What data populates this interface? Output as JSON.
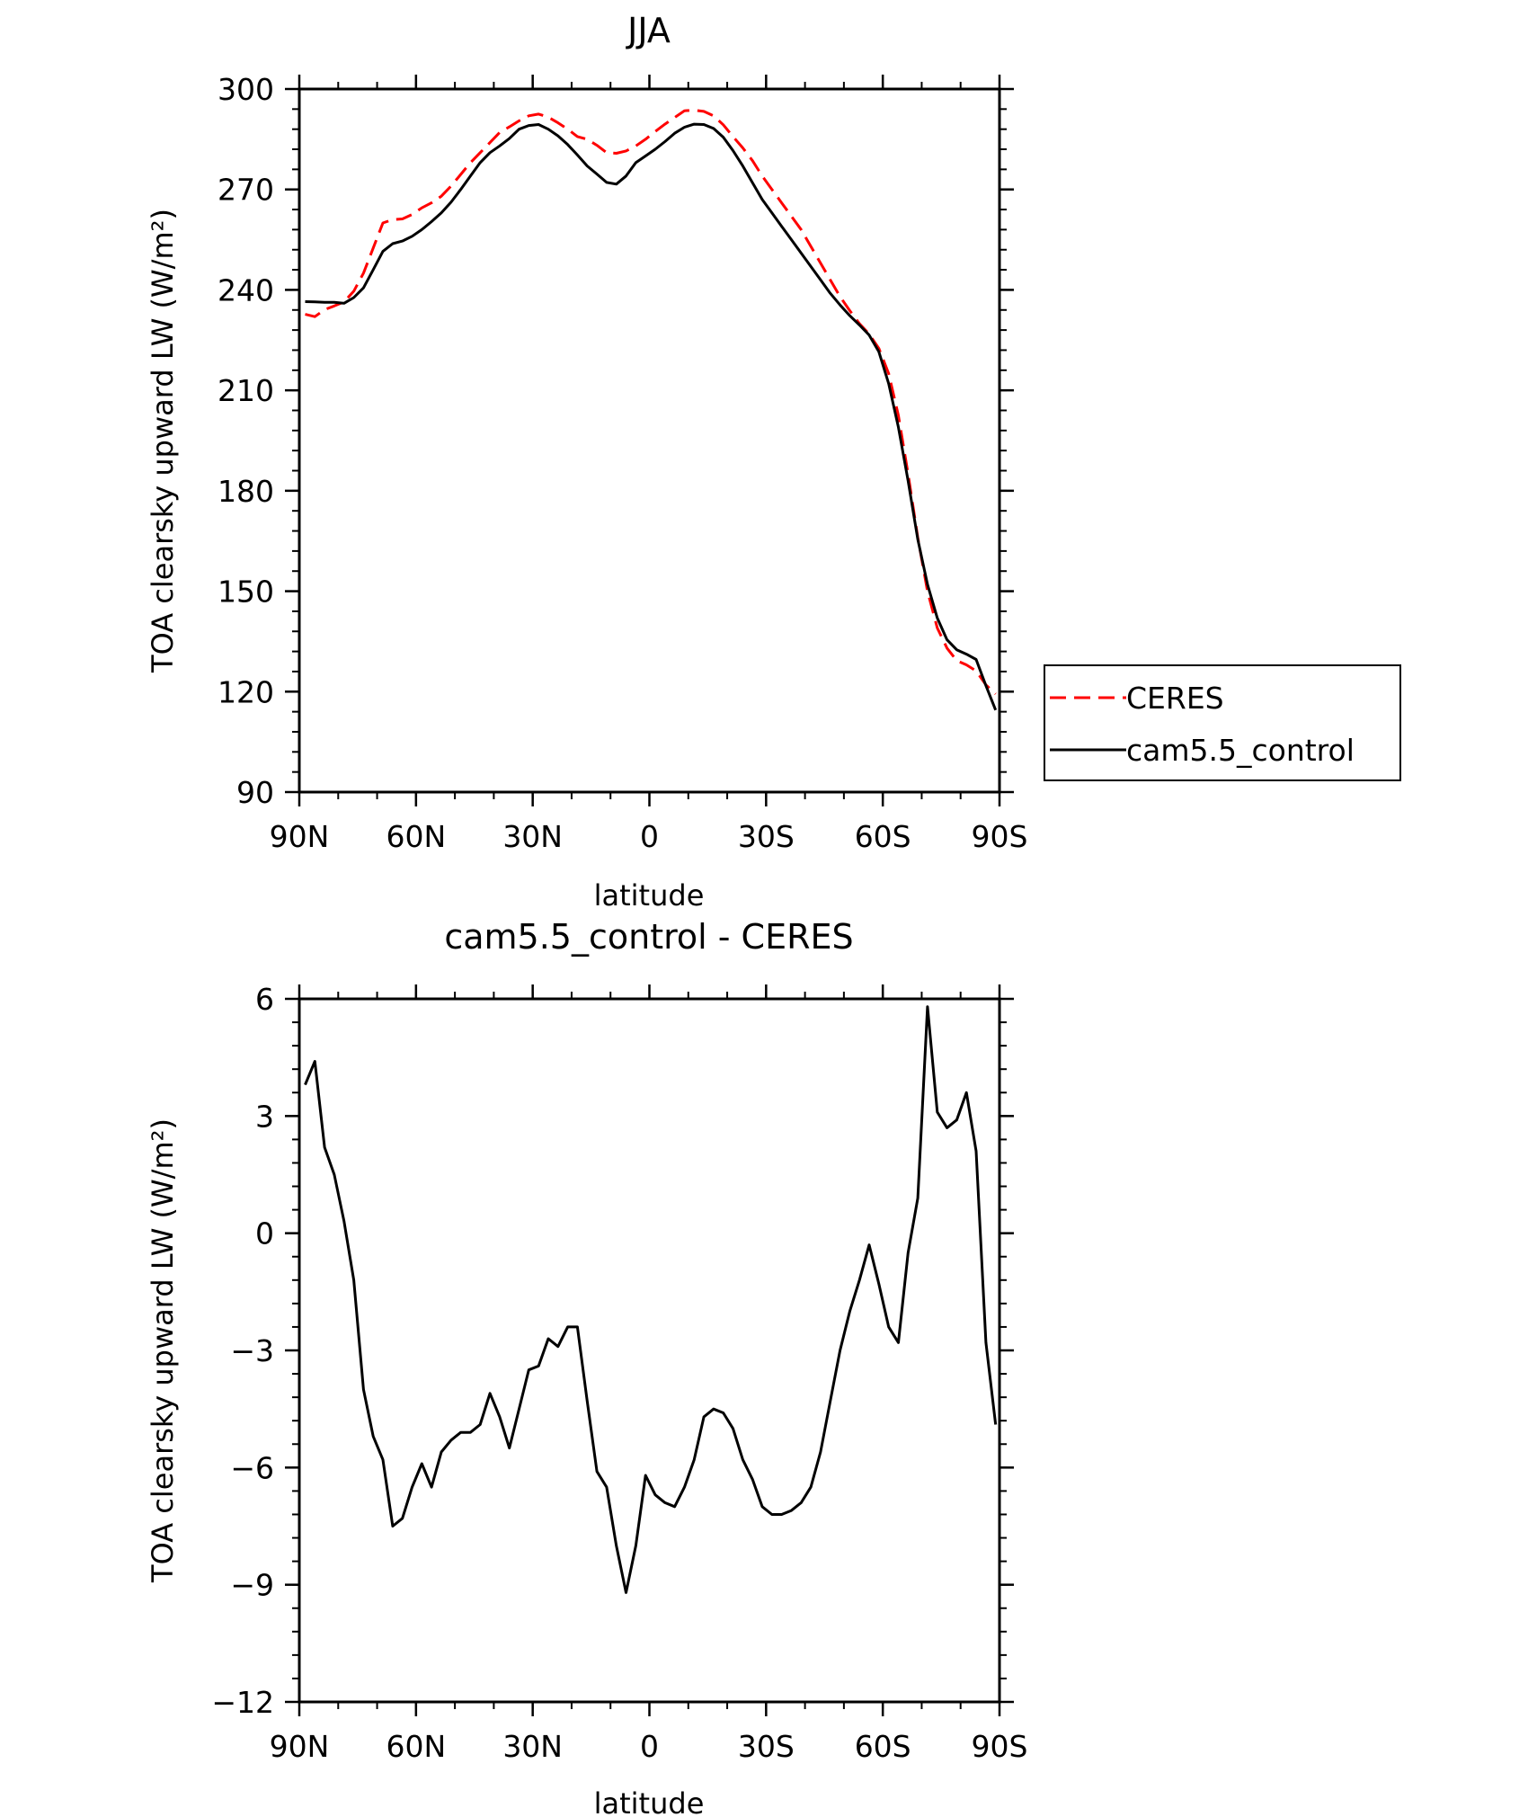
{
  "chart_data": [
    {
      "type": "line",
      "title": "JJA",
      "xlabel": "latitude",
      "ylabel": "TOA clearsky upward LW (W/m²)",
      "xlim": [
        90,
        -90
      ],
      "ylim": [
        90,
        300
      ],
      "xticks": [
        90,
        60,
        30,
        0,
        -30,
        -60,
        -90
      ],
      "xticklabels": [
        "90N",
        "60N",
        "30N",
        "0",
        "30S",
        "60S",
        "90S"
      ],
      "yticks": [
        90,
        120,
        150,
        180,
        210,
        240,
        270,
        300
      ],
      "yticklabels": [
        "90",
        "120",
        "150",
        "180",
        "210",
        "240",
        "270",
        "300"
      ],
      "legend_position": "right",
      "series": [
        {
          "name": "CERES",
          "color": "#ff0000",
          "style": "dashed",
          "x": [
            88.5,
            86,
            83.5,
            81,
            78.5,
            76,
            73.5,
            71,
            68.5,
            66,
            63.5,
            61,
            58.5,
            56,
            53.5,
            51,
            48.5,
            46,
            43.5,
            41,
            38.5,
            36,
            33.5,
            31,
            28.5,
            26,
            23.5,
            21,
            18.5,
            16,
            13.5,
            11,
            8.5,
            6,
            3.5,
            1,
            -1.5,
            -4,
            -6.5,
            -9,
            -11.5,
            -14,
            -16.5,
            -19,
            -21.5,
            -24,
            -26.5,
            -29,
            -31.5,
            -34,
            -36.5,
            -39,
            -41.5,
            -44,
            -46.5,
            -49,
            -51.5,
            -54,
            -56.5,
            -59,
            -61.5,
            -64,
            -66.5,
            -69,
            -71.5,
            -74,
            -76.5,
            -79,
            -81.5,
            -84,
            -86.5,
            -89
          ],
          "y": [
            232.7,
            232.0,
            234.1,
            235.2,
            236.4,
            239.6,
            245.0,
            252.5,
            260.0,
            261.0,
            261.2,
            262.5,
            264.5,
            266.0,
            268.0,
            271.0,
            274.5,
            278.0,
            281.0,
            284.0,
            287.0,
            288.7,
            290.5,
            292.0,
            292.5,
            291.6,
            289.9,
            288.0,
            285.8,
            285.0,
            283.2,
            281.0,
            280.8,
            281.5,
            283.0,
            285.0,
            287.3,
            289.5,
            291.5,
            293.5,
            293.7,
            293.3,
            292.0,
            289.3,
            285.8,
            282.4,
            278.6,
            274.0,
            270.0,
            266.0,
            262.0,
            258.0,
            253.0,
            248.0,
            243.0,
            238.0,
            233.8,
            229.9,
            226.8,
            222.5,
            215.0,
            202.5,
            185.0,
            166.0,
            150.0,
            139.0,
            133.0,
            129.3,
            128.0,
            126.2,
            122.0,
            119.3
          ]
        },
        {
          "name": "cam5.5_control",
          "color": "#000000",
          "style": "solid",
          "x": [
            88.5,
            86,
            83.5,
            81,
            78.5,
            76,
            73.5,
            71,
            68.5,
            66,
            63.5,
            61,
            58.5,
            56,
            53.5,
            51,
            48.5,
            46,
            43.5,
            41,
            38.5,
            36,
            33.5,
            31,
            28.5,
            26,
            23.5,
            21,
            18.5,
            16,
            13.5,
            11,
            8.5,
            6,
            3.5,
            1,
            -1.5,
            -4,
            -6.5,
            -9,
            -11.5,
            -14,
            -16.5,
            -19,
            -21.5,
            -24,
            -26.5,
            -29,
            -31.5,
            -34,
            -36.5,
            -39,
            -41.5,
            -44,
            -46.5,
            -49,
            -51.5,
            -54,
            -56.5,
            -59,
            -61.5,
            -64,
            -66.5,
            -69,
            -71.5,
            -74,
            -76.5,
            -79,
            -81.5,
            -84,
            -86.5,
            -89
          ],
          "y": [
            236.5,
            236.4,
            236.3,
            236.3,
            236.0,
            237.7,
            240.6,
            246.0,
            251.5,
            253.8,
            254.6,
            256.0,
            258.0,
            260.4,
            263.0,
            266.2,
            270.0,
            274.0,
            278.0,
            281.0,
            283.0,
            285.2,
            288.0,
            289.1,
            289.4,
            288.0,
            286.0,
            283.4,
            280.3,
            277.0,
            274.6,
            272.1,
            271.6,
            274.0,
            278.0,
            280.0,
            282.0,
            284.3,
            286.8,
            288.6,
            289.5,
            289.4,
            288.2,
            285.6,
            281.6,
            277.0,
            272.0,
            267.0,
            263.0,
            259.0,
            255.0,
            251.0,
            247.0,
            243.0,
            239.0,
            235.5,
            232.3,
            229.5,
            226.5,
            221.5,
            212.0,
            199.0,
            183.0,
            165.5,
            152.0,
            142.0,
            135.5,
            132.5,
            131.2,
            129.6,
            121.8,
            114.5
          ]
        }
      ]
    },
    {
      "type": "line",
      "title": "cam5.5_control - CERES",
      "xlabel": "latitude",
      "ylabel": "TOA clearsky upward LW (W/m²)",
      "xlim": [
        90,
        -90
      ],
      "ylim": [
        -12,
        6
      ],
      "xticks": [
        90,
        60,
        30,
        0,
        -30,
        -60,
        -90
      ],
      "xticklabels": [
        "90N",
        "60N",
        "30N",
        "0",
        "30S",
        "60S",
        "90S"
      ],
      "yticks": [
        -12,
        -9,
        -6,
        -3,
        0,
        3,
        6
      ],
      "yticklabels": [
        "−12",
        "−9",
        "−6",
        "−3",
        "0",
        "3",
        "6"
      ],
      "series": [
        {
          "color": "#000000",
          "style": "solid",
          "x": [
            88.5,
            86,
            83.5,
            81,
            78.5,
            76,
            73.5,
            71,
            68.5,
            66,
            63.5,
            61,
            58.5,
            56,
            53.5,
            51,
            48.5,
            46,
            43.5,
            41,
            38.5,
            36,
            33.5,
            31,
            28.5,
            26,
            23.5,
            21,
            18.5,
            16,
            13.5,
            11,
            8.5,
            6,
            3.5,
            1,
            -1.5,
            -4,
            -6.5,
            -9,
            -11.5,
            -14,
            -16.5,
            -19,
            -21.5,
            -24,
            -26.5,
            -29,
            -31.5,
            -34,
            -36.5,
            -39,
            -41.5,
            -44,
            -46.5,
            -49,
            -51.5,
            -54,
            -56.5,
            -59,
            -61.5,
            -64,
            -66.5,
            -69,
            -71.5,
            -74,
            -76.5,
            -79,
            -81.5,
            -84,
            -86.5,
            -89
          ],
          "y": [
            3.8,
            4.4,
            2.2,
            1.5,
            0.3,
            -1.2,
            -4.0,
            -5.2,
            -5.8,
            -7.5,
            -7.3,
            -6.5,
            -5.9,
            -6.5,
            -5.6,
            -5.3,
            -5.1,
            -5.1,
            -4.9,
            -4.1,
            -4.7,
            -5.5,
            -4.5,
            -3.5,
            -3.4,
            -2.7,
            -2.9,
            -2.4,
            -2.4,
            -4.3,
            -6.1,
            -6.5,
            -8.0,
            -9.2,
            -8.0,
            -6.2,
            -6.7,
            -6.9,
            -7.0,
            -6.5,
            -5.8,
            -4.7,
            -4.5,
            -4.6,
            -5.0,
            -5.8,
            -6.3,
            -7.0,
            -7.2,
            -7.2,
            -7.1,
            -6.9,
            -6.5,
            -5.6,
            -4.3,
            -3.0,
            -2.0,
            -1.2,
            -0.3,
            -1.3,
            -2.4,
            -2.8,
            -0.5,
            0.9,
            5.8,
            3.1,
            2.7,
            2.9,
            3.6,
            2.1,
            -2.8,
            -4.9
          ]
        }
      ]
    }
  ]
}
